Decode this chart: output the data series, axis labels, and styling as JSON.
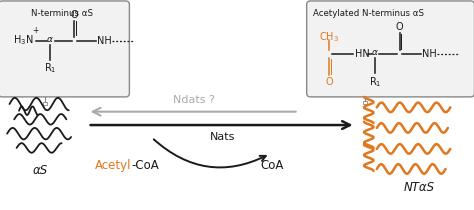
{
  "bg_color": "#ffffff",
  "dark_color": "#1a1a1a",
  "orange_color": "#e07820",
  "gray_color": "#aaaaaa",
  "box_bg": "#f2f2f2",
  "title_left": "N-terminus αS",
  "title_right": "Acetylated N-terminus αS",
  "label_as": "αS",
  "label_ntas": "NTαS",
  "label_ndats": "Ndats ?",
  "label_nats": "Nats",
  "label_coa": "CoA",
  "fig_width": 4.74,
  "fig_height": 2.1,
  "dpi": 100
}
